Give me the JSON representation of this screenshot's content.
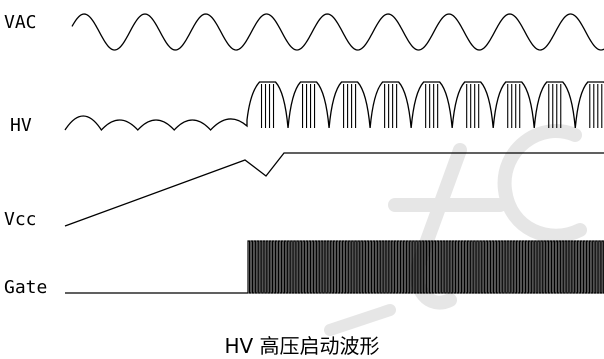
{
  "labels": {
    "vac": "VAC",
    "hv": "HV",
    "vcc": "Vcc",
    "gate": "Gate"
  },
  "caption": "HV 高压启动波形",
  "colors": {
    "line": "#000000",
    "watermark": "#e6e6e6"
  },
  "signals": {
    "vac": {
      "cycles": 9
    },
    "hv": {
      "pre_start_humps": 5,
      "rectified_humps": 9,
      "pulses_per_hump": 4
    },
    "vcc": {
      "shape": "linear-ramp-dip-then-flat"
    },
    "gate": {
      "shape": "low-then-switching"
    }
  }
}
